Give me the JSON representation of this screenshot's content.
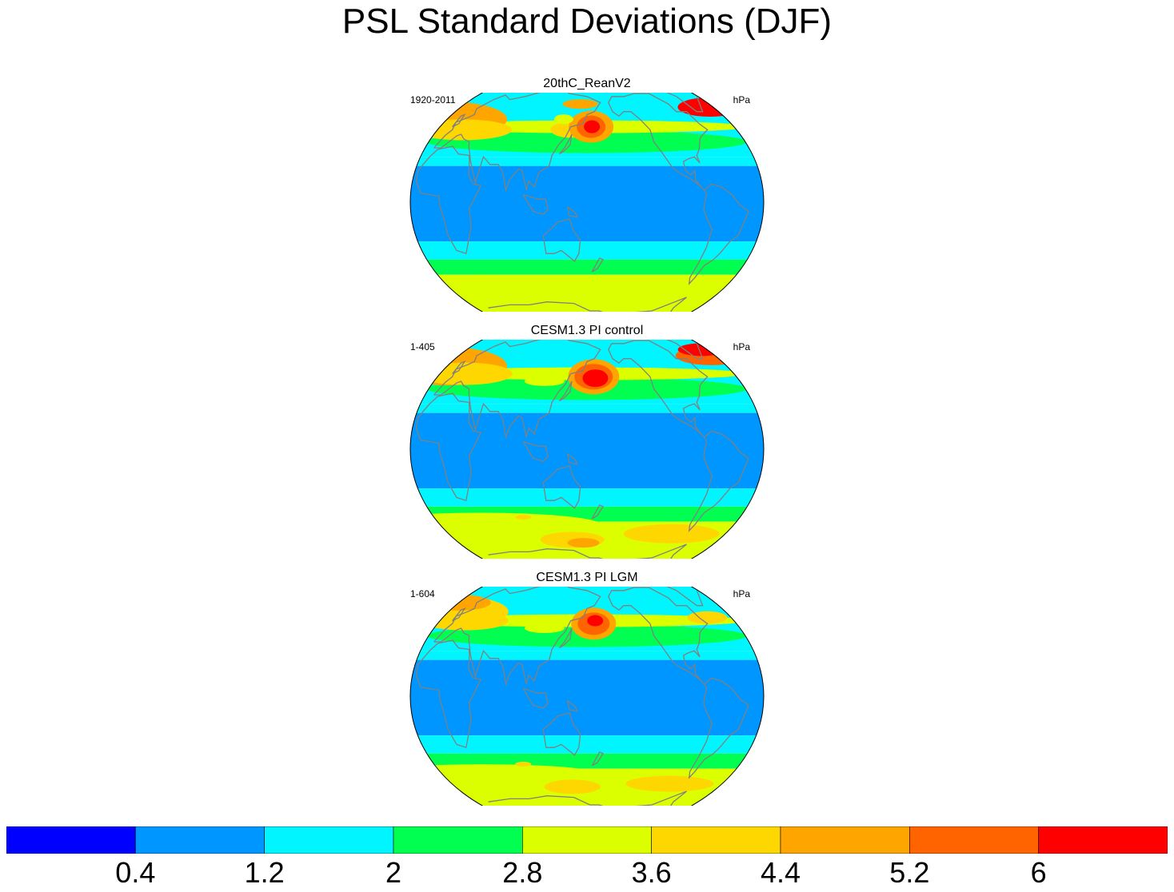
{
  "title": "PSL Standard Deviations (DJF)",
  "panels": [
    {
      "title": "20thC_ReanV2",
      "left_label": "1920-2011",
      "right_label": "hPa",
      "blobs": [
        {
          "lat": 55,
          "lon": -20,
          "rx": 75,
          "ry": 22,
          "level": 6
        },
        {
          "lat": 63,
          "lon": -25,
          "rx": 40,
          "ry": 12,
          "level": 8
        },
        {
          "lat": 48,
          "lon": 10,
          "rx": 62,
          "ry": 13,
          "level": 5
        },
        {
          "lat": 48,
          "lon": 140,
          "rx": 25,
          "ry": 10,
          "level": 5
        },
        {
          "lat": 50,
          "lon": 165,
          "rx": 28,
          "ry": 20,
          "level": 6
        },
        {
          "lat": 50,
          "lon": 165,
          "rx": 18,
          "ry": 14,
          "level": 7
        },
        {
          "lat": 50,
          "lon": 166,
          "rx": 10,
          "ry": 8,
          "level": 8
        },
        {
          "lat": 65,
          "lon": 150,
          "rx": 22,
          "ry": 6,
          "level": 6
        },
        {
          "lat": 55,
          "lon": 130,
          "rx": 12,
          "ry": 6,
          "level": 4
        },
        {
          "lat": -55,
          "lon": 30,
          "rx": 150,
          "ry": 13,
          "level": 4
        },
        {
          "lat": -58,
          "lon": -90,
          "rx": 55,
          "ry": 13,
          "level": 4
        },
        {
          "lat": -62,
          "lon": 120,
          "rx": 55,
          "ry": 12,
          "level": 4
        }
      ]
    },
    {
      "title": "CESM1.3 PI control",
      "left_label": "1-405",
      "right_label": "hPa",
      "blobs": [
        {
          "lat": 55,
          "lon": -20,
          "rx": 75,
          "ry": 24,
          "level": 6
        },
        {
          "lat": 62,
          "lon": -25,
          "rx": 45,
          "ry": 12,
          "level": 7
        },
        {
          "lat": 66,
          "lon": -28,
          "rx": 30,
          "ry": 8,
          "level": 8
        },
        {
          "lat": 50,
          "lon": 10,
          "rx": 60,
          "ry": 14,
          "level": 5
        },
        {
          "lat": 48,
          "lon": 168,
          "rx": 32,
          "ry": 22,
          "level": 6
        },
        {
          "lat": 48,
          "lon": 168,
          "rx": 24,
          "ry": 16,
          "level": 7
        },
        {
          "lat": 47,
          "lon": 170,
          "rx": 16,
          "ry": 11,
          "level": 8
        },
        {
          "lat": 45,
          "lon": 110,
          "rx": 25,
          "ry": 6,
          "level": 4
        },
        {
          "lat": -50,
          "lon": 30,
          "rx": 150,
          "ry": 15,
          "level": 4
        },
        {
          "lat": -56,
          "lon": -90,
          "rx": 60,
          "ry": 12,
          "level": 5
        },
        {
          "lat": -60,
          "lon": 140,
          "rx": 40,
          "ry": 10,
          "level": 5
        },
        {
          "lat": -62,
          "lon": 155,
          "rx": 20,
          "ry": 6,
          "level": 6
        },
        {
          "lat": -45,
          "lon": 85,
          "rx": 10,
          "ry": 3,
          "level": 5
        }
      ]
    },
    {
      "title": "CESM1.3 PI LGM",
      "left_label": "1-604",
      "right_label": "hPa",
      "blobs": [
        {
          "lat": 56,
          "lon": -15,
          "rx": 70,
          "ry": 20,
          "level": 5
        },
        {
          "lat": 62,
          "lon": -20,
          "rx": 40,
          "ry": 10,
          "level": 6
        },
        {
          "lat": 50,
          "lon": 10,
          "rx": 55,
          "ry": 12,
          "level": 5
        },
        {
          "lat": 52,
          "lon": -50,
          "rx": 25,
          "ry": 8,
          "level": 5
        },
        {
          "lat": 48,
          "lon": 168,
          "rx": 28,
          "ry": 20,
          "level": 6
        },
        {
          "lat": 48,
          "lon": 168,
          "rx": 20,
          "ry": 14,
          "level": 7
        },
        {
          "lat": 50,
          "lon": 170,
          "rx": 10,
          "ry": 7,
          "level": 8
        },
        {
          "lat": 45,
          "lon": 110,
          "rx": 25,
          "ry": 6,
          "level": 4
        },
        {
          "lat": -52,
          "lon": 30,
          "rx": 150,
          "ry": 13,
          "level": 4
        },
        {
          "lat": -58,
          "lon": -90,
          "rx": 55,
          "ry": 10,
          "level": 5
        },
        {
          "lat": -60,
          "lon": 140,
          "rx": 35,
          "ry": 9,
          "level": 5
        },
        {
          "lat": -45,
          "lon": 85,
          "rx": 10,
          "ry": 3,
          "level": 5
        }
      ]
    }
  ],
  "colorbar": {
    "colors": [
      "#0000ff",
      "#0096ff",
      "#00f5ff",
      "#00ff50",
      "#dcff00",
      "#ffd700",
      "#ffa500",
      "#ff6400",
      "#ff0000"
    ],
    "tick_labels": [
      "0.4",
      "1.2",
      "2",
      "2.8",
      "3.6",
      "4.4",
      "5.2",
      "6"
    ]
  },
  "map_colors": {
    "coastline": "#808080",
    "outline": "#000000"
  }
}
